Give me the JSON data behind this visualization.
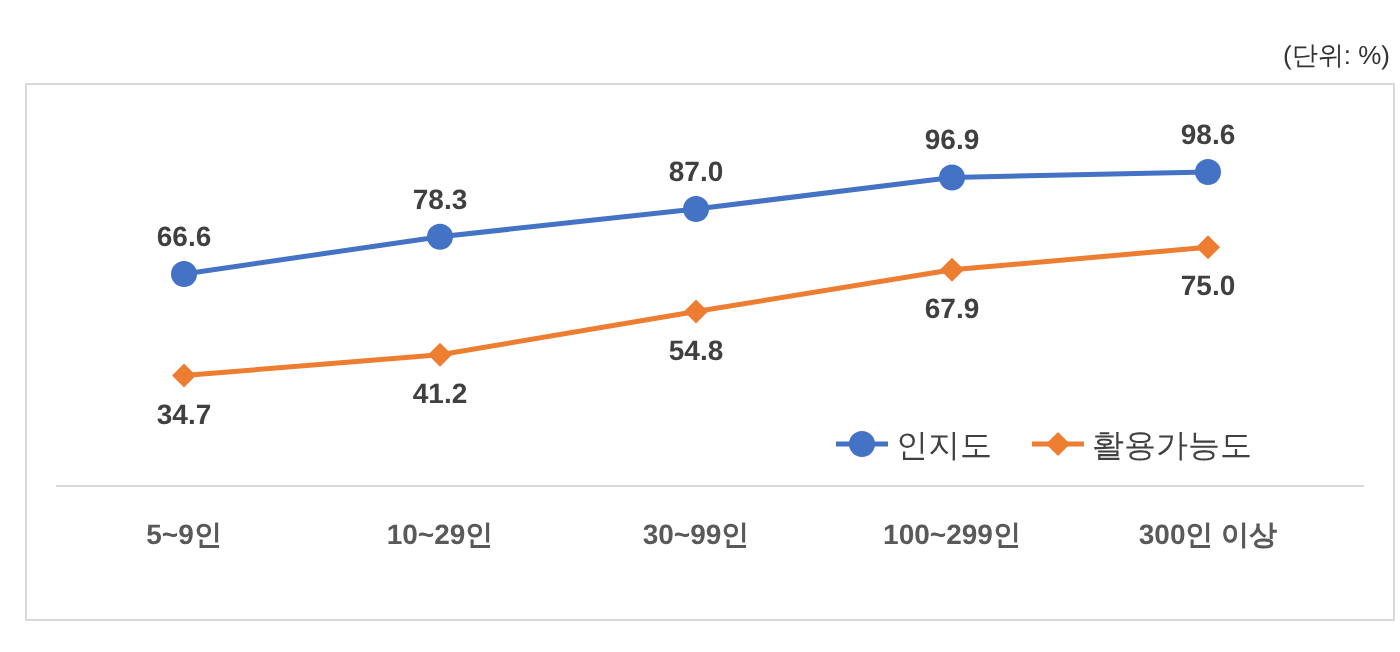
{
  "chart_data": {
    "type": "line",
    "categories": [
      "5~9인",
      "10~29인",
      "30~99인",
      "100~299인",
      "300인 이상"
    ],
    "series": [
      {
        "name": "인지도",
        "color": "#4472c4",
        "marker": "circle",
        "values": [
          66.6,
          78.3,
          87.0,
          96.9,
          98.6
        ],
        "value_labels": [
          "66.6",
          "78.3",
          "87.0",
          "96.9",
          "98.6"
        ]
      },
      {
        "name": "활용가능도",
        "color": "#ed7d31",
        "marker": "diamond",
        "values": [
          34.7,
          41.2,
          54.8,
          67.9,
          75.0
        ],
        "value_labels": [
          "34.7",
          "41.2",
          "54.8",
          "67.9",
          "75.0"
        ]
      }
    ],
    "ylim": [
      0,
      125
    ],
    "legend": "bottom right",
    "grid": false,
    "annotations": [
      "(단위:  %)"
    ]
  }
}
